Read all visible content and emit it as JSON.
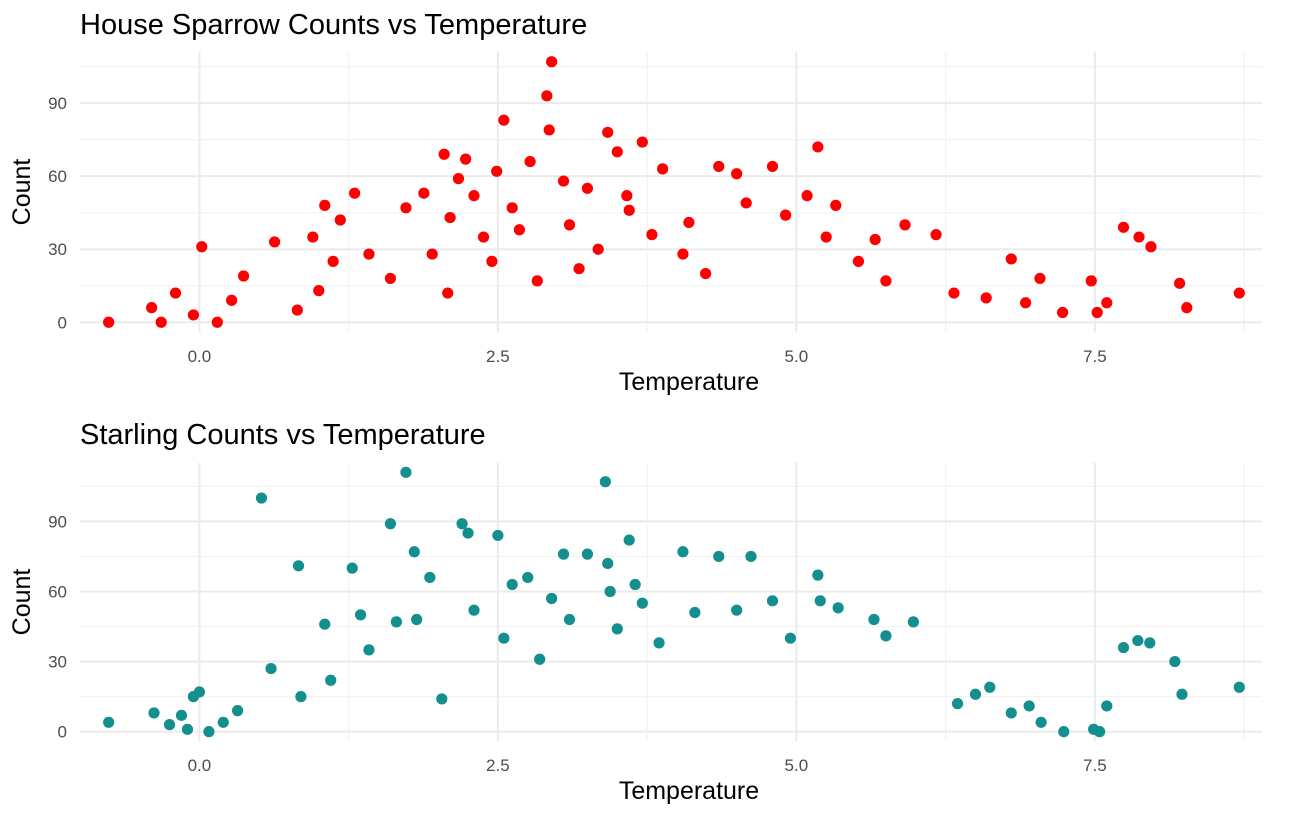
{
  "chart_data": [
    {
      "type": "scatter",
      "title": "House Sparrow Counts vs Temperature",
      "xlabel": "Temperature",
      "ylabel": "Count",
      "xlim": [
        -1.0,
        8.9
      ],
      "ylim": [
        -4,
        111
      ],
      "xticks": [
        0.0,
        2.5,
        5.0,
        7.5
      ],
      "xtick_labels": [
        "0.0",
        "2.5",
        "5.0",
        "7.5"
      ],
      "yticks": [
        0,
        30,
        60,
        90
      ],
      "ytick_labels": [
        "0",
        "30",
        "60",
        "90"
      ],
      "grid": true,
      "legend": "none",
      "color": "#ff0000",
      "series": [
        {
          "x": [
            -0.76,
            -0.4,
            -0.32,
            -0.2,
            -0.05,
            0.02,
            0.15,
            0.27,
            0.37,
            0.63,
            0.82,
            0.95,
            1.0,
            1.05,
            1.12,
            1.18,
            1.3,
            1.42,
            1.6,
            1.73,
            1.88,
            1.95,
            2.05,
            2.08,
            2.1,
            2.17,
            2.23,
            2.3,
            2.38,
            2.45,
            2.49,
            2.55,
            2.62,
            2.68,
            2.77,
            2.83,
            2.91,
            2.93,
            2.95,
            3.05,
            3.1,
            3.18,
            3.25,
            3.34,
            3.42,
            3.5,
            3.58,
            3.6,
            3.71,
            3.79,
            3.88,
            4.05,
            4.1,
            4.24,
            4.35,
            4.5,
            4.58,
            4.8,
            4.91,
            5.09,
            5.18,
            5.25,
            5.33,
            5.52,
            5.66,
            5.75,
            5.91,
            6.17,
            6.32,
            6.59,
            6.8,
            6.92,
            7.04,
            7.23,
            7.47,
            7.52,
            7.6,
            7.74,
            7.87,
            7.97,
            8.21,
            8.27,
            8.71
          ],
          "y": [
            0,
            6,
            0,
            12,
            3,
            31,
            0,
            9,
            19,
            33,
            5,
            35,
            13,
            48,
            25,
            42,
            53,
            28,
            18,
            47,
            53,
            28,
            69,
            12,
            43,
            59,
            67,
            52,
            35,
            25,
            62,
            83,
            47,
            38,
            66,
            17,
            93,
            79,
            107,
            58,
            40,
            22,
            55,
            30,
            78,
            70,
            52,
            46,
            74,
            36,
            63,
            28,
            41,
            20,
            64,
            61,
            49,
            64,
            44,
            52,
            72,
            35,
            48,
            25,
            34,
            17,
            40,
            36,
            12,
            10,
            26,
            8,
            18,
            4,
            17,
            4,
            8,
            39,
            35,
            31,
            16,
            6,
            12
          ]
        }
      ]
    },
    {
      "type": "scatter",
      "title": "Starling Counts vs Temperature",
      "xlabel": "Temperature",
      "ylabel": "Count",
      "xlim": [
        -1.0,
        8.9
      ],
      "ylim": [
        -4,
        115
      ],
      "xticks": [
        0.0,
        2.5,
        5.0,
        7.5
      ],
      "xtick_labels": [
        "0.0",
        "2.5",
        "5.0",
        "7.5"
      ],
      "yticks": [
        0,
        30,
        60,
        90
      ],
      "ytick_labels": [
        "0",
        "30",
        "60",
        "90"
      ],
      "grid": true,
      "legend": "none",
      "color": "#138f8e",
      "series": [
        {
          "x": [
            -0.76,
            -0.38,
            -0.25,
            -0.15,
            -0.1,
            -0.05,
            0.0,
            0.08,
            0.2,
            0.32,
            0.52,
            0.6,
            0.83,
            0.85,
            1.05,
            1.1,
            1.28,
            1.35,
            1.42,
            1.6,
            1.65,
            1.73,
            1.8,
            1.82,
            1.93,
            2.03,
            2.2,
            2.25,
            2.3,
            2.5,
            2.55,
            2.62,
            2.75,
            2.85,
            2.95,
            3.05,
            3.1,
            3.25,
            3.4,
            3.42,
            3.44,
            3.5,
            3.6,
            3.65,
            3.71,
            3.85,
            4.05,
            4.15,
            4.35,
            4.5,
            4.62,
            4.8,
            4.95,
            5.18,
            5.2,
            5.35,
            5.65,
            5.75,
            5.98,
            6.35,
            6.5,
            6.62,
            6.8,
            6.95,
            7.05,
            7.24,
            7.49,
            7.54,
            7.6,
            7.74,
            7.86,
            7.96,
            8.17,
            8.23,
            8.71
          ],
          "y": [
            4,
            8,
            3,
            7,
            1,
            15,
            17,
            0,
            4,
            9,
            100,
            27,
            71,
            15,
            46,
            22,
            70,
            50,
            35,
            89,
            47,
            111,
            77,
            48,
            66,
            14,
            89,
            85,
            52,
            84,
            40,
            63,
            66,
            31,
            57,
            76,
            48,
            76,
            107,
            72,
            60,
            44,
            82,
            63,
            55,
            38,
            77,
            51,
            75,
            52,
            75,
            56,
            40,
            67,
            56,
            53,
            48,
            41,
            47,
            12,
            16,
            19,
            8,
            11,
            4,
            0,
            1,
            0,
            11,
            36,
            39,
            38,
            30,
            16,
            19
          ]
        }
      ]
    }
  ]
}
